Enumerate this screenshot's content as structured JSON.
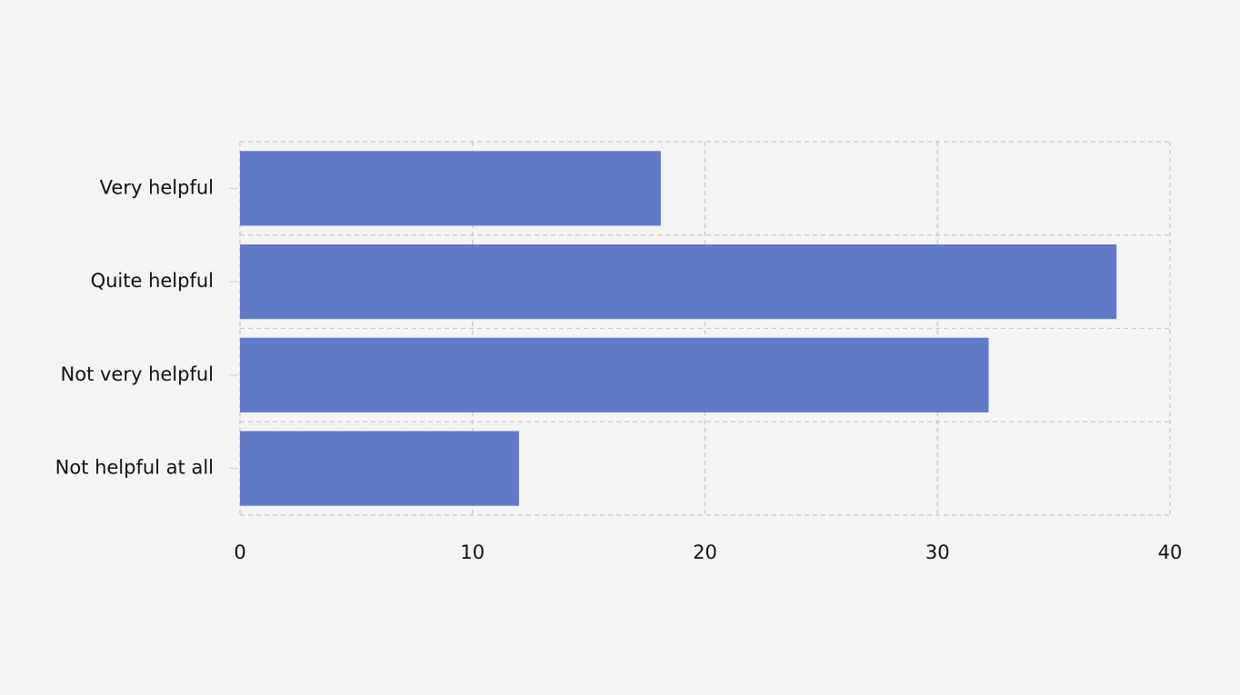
{
  "chart_data": {
    "type": "barh",
    "categories": [
      "Very helpful",
      "Quite helpful",
      "Not very helpful",
      "Not helpful at all"
    ],
    "values": [
      18.1,
      37.7,
      32.2,
      12.0
    ],
    "color": "#617bc9",
    "xlim": [
      0,
      40
    ],
    "xticks": [
      0,
      10,
      20,
      30,
      40
    ],
    "grid": true
  }
}
